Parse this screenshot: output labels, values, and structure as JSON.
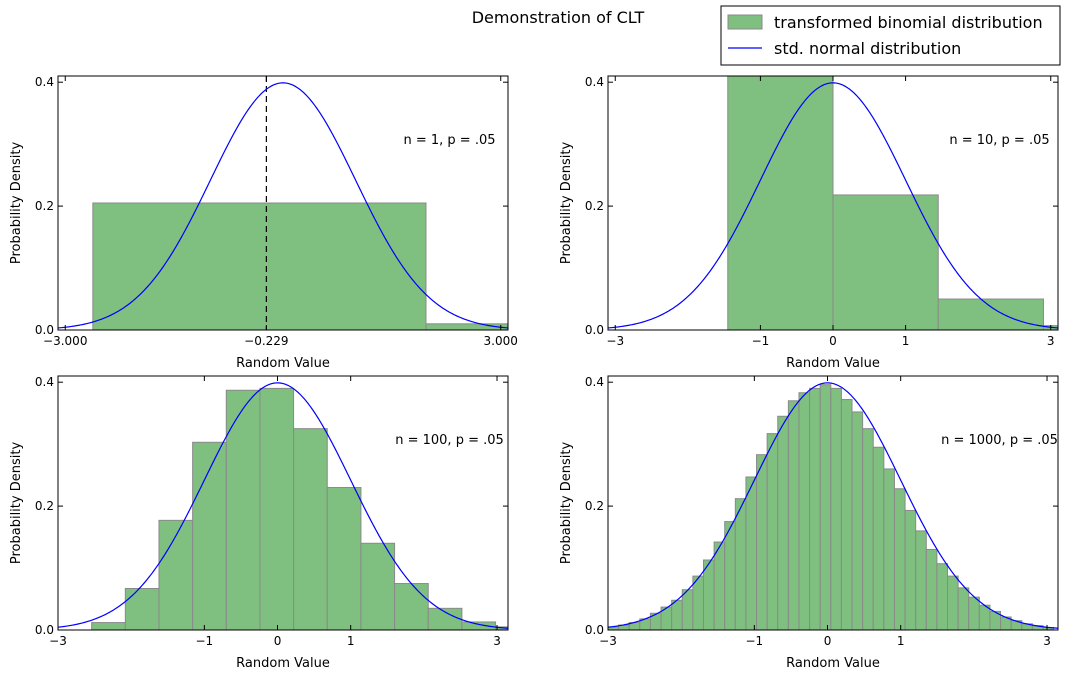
{
  "figure": {
    "title": "Demonstration of CLT",
    "legend": {
      "placement": "top-right",
      "hist_label": "transformed binomial distribution",
      "line_label": "std. normal distribution"
    },
    "colors": {
      "bars": "#7fbf7f",
      "bar_edge": "#8a8a8a",
      "line": "#0000ff",
      "marker": "#000000"
    }
  },
  "chart_data": [
    {
      "type": "bar",
      "title": "",
      "annotation": "n = 1, p = .05",
      "xlabel": "Random Value",
      "ylabel": "Probability Density",
      "xlim": [
        -3.1,
        3.1
      ],
      "ylim": [
        0,
        0.41
      ],
      "xticks": [
        -3,
        -0.229,
        3
      ],
      "xtick_labels": [
        "−3.000",
        "−0.229",
        "3.000"
      ],
      "yticks": [
        0,
        0.2,
        0.4
      ],
      "ytick_labels": [
        "0.0",
        "0.2",
        "0.4"
      ],
      "marker_line_x": -0.229,
      "bins": [
        {
          "x0": -2.62,
          "x1": 1.97,
          "value": 0.205
        },
        {
          "x0": 1.97,
          "x1": 3.1,
          "value": 0.01
        }
      ],
      "curve": "std. normal pdf"
    },
    {
      "type": "bar",
      "title": "",
      "annotation": "n = 10, p = .05",
      "xlabel": "Random Value",
      "ylabel": "Probability Density",
      "xlim": [
        -3.1,
        3.1
      ],
      "ylim": [
        0,
        0.41
      ],
      "xticks": [
        -3,
        -1,
        0,
        1,
        3
      ],
      "xtick_labels": [
        "−3",
        "−1",
        "0",
        "1",
        "3"
      ],
      "yticks": [
        0,
        0.2,
        0.4
      ],
      "ytick_labels": [
        "0.0",
        "0.2",
        "0.4"
      ],
      "bins": [
        {
          "x0": -1.45,
          "x1": 0.0,
          "value": 0.42
        },
        {
          "x0": 0.0,
          "x1": 1.45,
          "value": 0.218
        },
        {
          "x0": 1.45,
          "x1": 2.9,
          "value": 0.05
        },
        {
          "x0": 2.9,
          "x1": 3.1,
          "value": 0.007
        }
      ],
      "curve": "std. normal pdf"
    },
    {
      "type": "bar",
      "title": "",
      "annotation": "n = 100, p = .05",
      "xlabel": "Random Value",
      "ylabel": "Probability Density",
      "xlim": [
        -3.0,
        3.15
      ],
      "ylim": [
        0,
        0.41
      ],
      "xticks": [
        -3,
        -1,
        0,
        1,
        3
      ],
      "xtick_labels": [
        "−3",
        "−1",
        "0",
        "1",
        "3"
      ],
      "yticks": [
        0,
        0.2,
        0.4
      ],
      "ytick_labels": [
        "0.0",
        "0.2",
        "0.4"
      ],
      "bins": [
        {
          "x0": -2.54,
          "x1": -2.08,
          "value": 0.012
        },
        {
          "x0": -2.08,
          "x1": -1.62,
          "value": 0.067
        },
        {
          "x0": -1.62,
          "x1": -1.16,
          "value": 0.177
        },
        {
          "x0": -1.16,
          "x1": -0.7,
          "value": 0.303
        },
        {
          "x0": -0.7,
          "x1": -0.24,
          "value": 0.387
        },
        {
          "x0": -0.24,
          "x1": 0.22,
          "value": 0.39
        },
        {
          "x0": 0.22,
          "x1": 0.68,
          "value": 0.325
        },
        {
          "x0": 0.68,
          "x1": 1.14,
          "value": 0.23
        },
        {
          "x0": 1.14,
          "x1": 1.6,
          "value": 0.14
        },
        {
          "x0": 1.6,
          "x1": 2.06,
          "value": 0.075
        },
        {
          "x0": 2.06,
          "x1": 2.52,
          "value": 0.035
        },
        {
          "x0": 2.52,
          "x1": 2.98,
          "value": 0.013
        },
        {
          "x0": 2.98,
          "x1": 3.15,
          "value": 0.005
        }
      ],
      "curve": "std. normal pdf"
    },
    {
      "type": "bar",
      "title": "",
      "annotation": "n = 1000, p = .05",
      "xlabel": "Random Value",
      "ylabel": "Probability Density",
      "xlim": [
        -3.0,
        3.15
      ],
      "ylim": [
        0,
        0.41
      ],
      "xticks": [
        -3,
        -1,
        0,
        1,
        3
      ],
      "xtick_labels": [
        "−3",
        "−1",
        "0",
        "1",
        "3"
      ],
      "yticks": [
        0,
        0.2,
        0.4
      ],
      "ytick_labels": [
        "0.0",
        "0.2",
        "0.4"
      ],
      "bins": [
        {
          "x0": -3.0,
          "x1": -2.855,
          "value": 0.005
        },
        {
          "x0": -2.855,
          "x1": -2.71,
          "value": 0.008
        },
        {
          "x0": -2.71,
          "x1": -2.565,
          "value": 0.012
        },
        {
          "x0": -2.565,
          "x1": -2.42,
          "value": 0.018
        },
        {
          "x0": -2.42,
          "x1": -2.275,
          "value": 0.027
        },
        {
          "x0": -2.275,
          "x1": -2.13,
          "value": 0.037
        },
        {
          "x0": -2.13,
          "x1": -1.985,
          "value": 0.048
        },
        {
          "x0": -1.985,
          "x1": -1.84,
          "value": 0.065
        },
        {
          "x0": -1.84,
          "x1": -1.695,
          "value": 0.087
        },
        {
          "x0": -1.695,
          "x1": -1.55,
          "value": 0.113
        },
        {
          "x0": -1.55,
          "x1": -1.405,
          "value": 0.142
        },
        {
          "x0": -1.405,
          "x1": -1.26,
          "value": 0.175
        },
        {
          "x0": -1.26,
          "x1": -1.115,
          "value": 0.212
        },
        {
          "x0": -1.115,
          "x1": -0.97,
          "value": 0.247
        },
        {
          "x0": -0.97,
          "x1": -0.825,
          "value": 0.283
        },
        {
          "x0": -0.825,
          "x1": -0.68,
          "value": 0.317
        },
        {
          "x0": -0.68,
          "x1": -0.535,
          "value": 0.345
        },
        {
          "x0": -0.535,
          "x1": -0.39,
          "value": 0.37
        },
        {
          "x0": -0.39,
          "x1": -0.245,
          "value": 0.383
        },
        {
          "x0": -0.245,
          "x1": -0.1,
          "value": 0.39
        },
        {
          "x0": -0.1,
          "x1": 0.045,
          "value": 0.396
        },
        {
          "x0": 0.045,
          "x1": 0.19,
          "value": 0.39
        },
        {
          "x0": 0.19,
          "x1": 0.335,
          "value": 0.372
        },
        {
          "x0": 0.335,
          "x1": 0.48,
          "value": 0.352
        },
        {
          "x0": 0.48,
          "x1": 0.625,
          "value": 0.325
        },
        {
          "x0": 0.625,
          "x1": 0.77,
          "value": 0.295
        },
        {
          "x0": 0.77,
          "x1": 0.915,
          "value": 0.26
        },
        {
          "x0": 0.915,
          "x1": 1.06,
          "value": 0.228
        },
        {
          "x0": 1.06,
          "x1": 1.205,
          "value": 0.193
        },
        {
          "x0": 1.205,
          "x1": 1.35,
          "value": 0.16
        },
        {
          "x0": 1.35,
          "x1": 1.495,
          "value": 0.13
        },
        {
          "x0": 1.495,
          "x1": 1.64,
          "value": 0.107
        },
        {
          "x0": 1.64,
          "x1": 1.785,
          "value": 0.087
        },
        {
          "x0": 1.785,
          "x1": 1.93,
          "value": 0.068
        },
        {
          "x0": 1.93,
          "x1": 2.075,
          "value": 0.053
        },
        {
          "x0": 2.075,
          "x1": 2.22,
          "value": 0.04
        },
        {
          "x0": 2.22,
          "x1": 2.365,
          "value": 0.03
        },
        {
          "x0": 2.365,
          "x1": 2.51,
          "value": 0.021
        },
        {
          "x0": 2.51,
          "x1": 2.655,
          "value": 0.015
        },
        {
          "x0": 2.655,
          "x1": 2.8,
          "value": 0.01
        },
        {
          "x0": 2.8,
          "x1": 2.945,
          "value": 0.007
        },
        {
          "x0": 2.945,
          "x1": 3.09,
          "value": 0.004
        }
      ],
      "curve": "std. normal pdf"
    }
  ]
}
